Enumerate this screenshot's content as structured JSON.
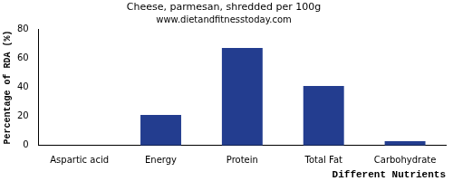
{
  "chart_data": {
    "type": "bar",
    "title": "Cheese, parmesan, shredded per 100g",
    "subtitle": "www.dietandfitnesstoday.com",
    "x_label": "Different Nutrients",
    "y_label": "Percentage of RDA (%)",
    "categories": [
      "Aspartic acid",
      "Energy",
      "Protein",
      "Total Fat",
      "Carbohydrate"
    ],
    "values": [
      0,
      21,
      67,
      41,
      3
    ],
    "color": "#233d8f",
    "ylim": [
      0,
      80
    ],
    "yticks": [
      0,
      20,
      40,
      60,
      80
    ],
    "grid": false
  }
}
